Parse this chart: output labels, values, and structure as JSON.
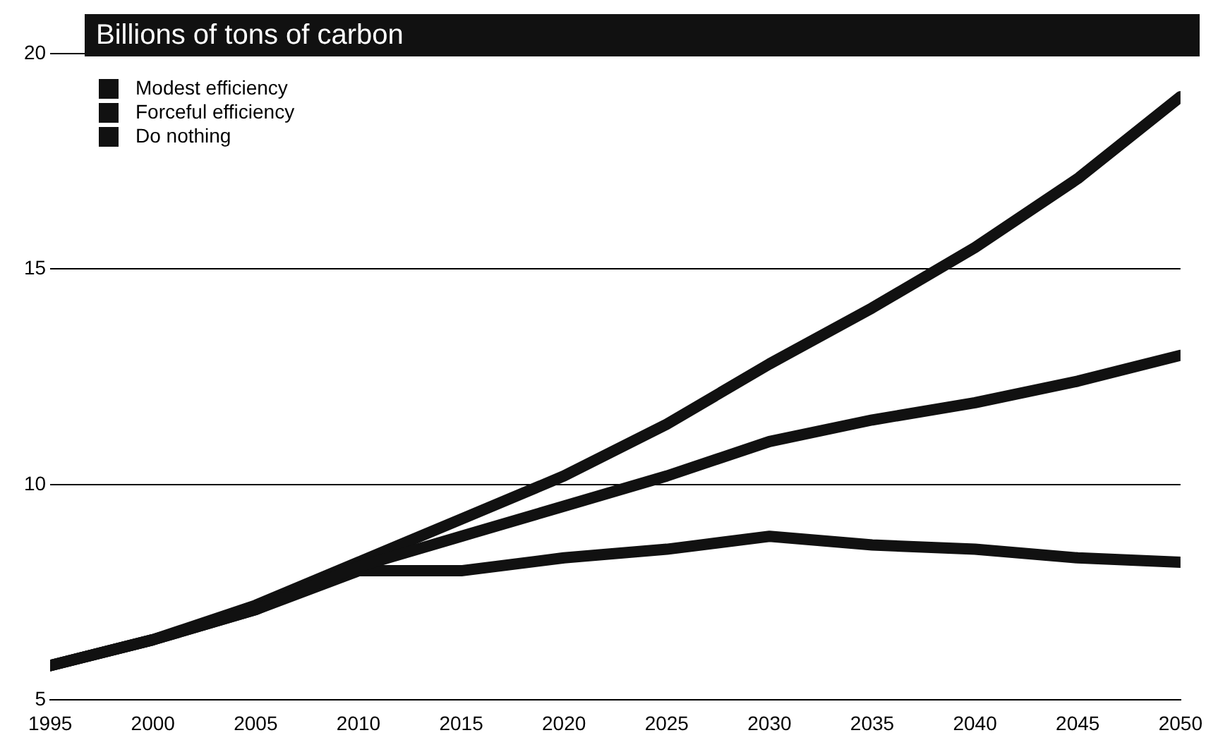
{
  "chart_data": {
    "type": "line",
    "title": "Billions of tons of carbon",
    "x": [
      1995,
      2000,
      2005,
      2010,
      2015,
      2020,
      2025,
      2030,
      2035,
      2040,
      2045,
      2050
    ],
    "series": [
      {
        "name": "Modest efficiency",
        "color": "#111111",
        "values": [
          5.8,
          6.4,
          7.1,
          8.1,
          8.8,
          9.5,
          10.2,
          11.0,
          11.5,
          11.9,
          12.4,
          13.0
        ]
      },
      {
        "name": "Forceful efficiency",
        "color": "#111111",
        "values": [
          5.8,
          6.4,
          7.1,
          8.0,
          8.0,
          8.3,
          8.5,
          8.8,
          8.6,
          8.5,
          8.3,
          8.2
        ]
      },
      {
        "name": "Do nothing",
        "color": "#111111",
        "values": [
          5.8,
          6.4,
          7.2,
          8.2,
          9.2,
          10.2,
          11.4,
          12.8,
          14.1,
          15.5,
          17.1,
          19.0
        ]
      }
    ],
    "xlim": [
      1995,
      2050
    ],
    "xticks": [
      1995,
      2000,
      2005,
      2010,
      2015,
      2020,
      2025,
      2030,
      2035,
      2040,
      2045,
      2050
    ],
    "ylim": [
      5,
      20
    ],
    "yticks": [
      5,
      10,
      15,
      20
    ],
    "grid": "y",
    "legend": "top left",
    "marker": "none",
    "line_style": "solid"
  }
}
